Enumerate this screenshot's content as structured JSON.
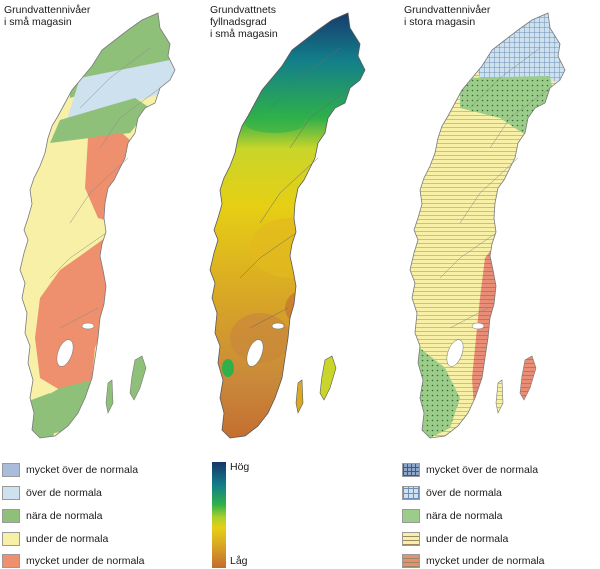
{
  "panels": [
    {
      "title": "Grundvattennivåer\ni små magasin",
      "legend": [
        {
          "label": "mycket över de normala",
          "color": "#a9bcd9"
        },
        {
          "label": "över de normala",
          "color": "#cde1ef"
        },
        {
          "label": "nära de normala",
          "color": "#8fc07a"
        },
        {
          "label": "under de normala",
          "color": "#f7f0a6"
        },
        {
          "label": "mycket under de normala",
          "color": "#ee8f6e"
        }
      ]
    },
    {
      "title": "Grundvattnets\nfyllnadsgrad\ni små magasin",
      "ramp": {
        "high_label": "Hög",
        "low_label": "Låg"
      }
    },
    {
      "title": "Grundvattennivåer\ni stora magasin",
      "legend": [
        {
          "label": "mycket över de normala",
          "color": "#8fa6cc",
          "pattern": "grid-dense"
        },
        {
          "label": "över de normala",
          "color": "#cde1ef",
          "pattern": "grid"
        },
        {
          "label": "nära de normala",
          "color": "#9ccc8a",
          "pattern": "none"
        },
        {
          "label": "under de normala",
          "color": "#f7f0a6",
          "pattern": "h-lines"
        },
        {
          "label": "mycket under de normala",
          "color": "#e98d76",
          "pattern": "h-lines"
        }
      ]
    }
  ]
}
